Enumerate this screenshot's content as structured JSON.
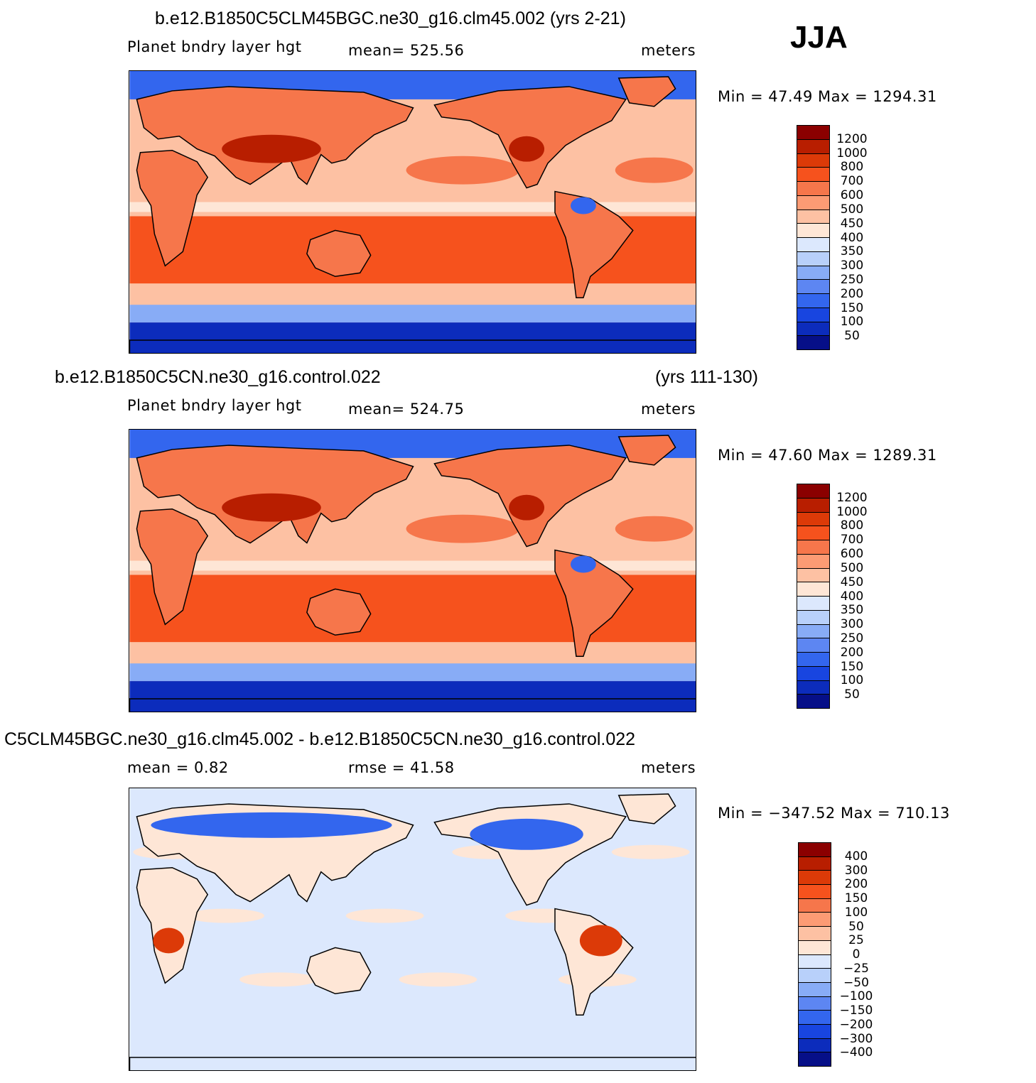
{
  "season": "JJA",
  "panels": [
    {
      "title": "b.e12.B1850C5CLM45BGC.ne30_g16.clm45.002 (yrs 2-21)",
      "title_right": "",
      "left_label": "Planet bndry layer hgt",
      "center_label": "mean= 525.56",
      "units": "meters",
      "minmax": "Min =   47.49 Max = 1294.31",
      "colorbar": {
        "levels": [
          "1200",
          "1000",
          "800",
          "700",
          "600",
          "500",
          "450",
          "400",
          "350",
          "300",
          "250",
          "200",
          "150",
          "100",
          "50"
        ],
        "colors": [
          "#8b0000",
          "#b81e00",
          "#dc3a08",
          "#f6521d",
          "#f6764b",
          "#fc9b74",
          "#fdc1a3",
          "#fee6d6",
          "#dce8fd",
          "#b8d0fa",
          "#88acf6",
          "#5d86f2",
          "#3366ee",
          "#1845e0",
          "#0c2cbc",
          "#060f88"
        ]
      },
      "map_kind": "abs"
    },
    {
      "title": "b.e12.B1850C5CN.ne30_g16.control.022",
      "title_right": "(yrs 111-130)",
      "left_label": "Planet bndry layer hgt",
      "center_label": "mean= 524.75",
      "units": "meters",
      "minmax": "Min =   47.60 Max = 1289.31",
      "colorbar": {
        "levels": [
          "1200",
          "1000",
          "800",
          "700",
          "600",
          "500",
          "450",
          "400",
          "350",
          "300",
          "250",
          "200",
          "150",
          "100",
          "50"
        ],
        "colors": [
          "#8b0000",
          "#b81e00",
          "#dc3a08",
          "#f6521d",
          "#f6764b",
          "#fc9b74",
          "#fdc1a3",
          "#fee6d6",
          "#dce8fd",
          "#b8d0fa",
          "#88acf6",
          "#5d86f2",
          "#3366ee",
          "#1845e0",
          "#0c2cbc",
          "#060f88"
        ]
      },
      "map_kind": "abs"
    },
    {
      "title": "C5CLM45BGC.ne30_g16.clm45.002 - b.e12.B1850C5CN.ne30_g16.control.022",
      "title_right": "",
      "left_label": "mean =    0.82",
      "center_label": "rmse =   41.58",
      "units": "meters",
      "minmax": "Min = −347.52 Max = 710.13",
      "colorbar": {
        "levels": [
          "400",
          "300",
          "200",
          "150",
          "100",
          "50",
          "25",
          "0",
          "−25",
          "−50",
          "−100",
          "−150",
          "−200",
          "−300",
          "−400"
        ],
        "colors": [
          "#8b0000",
          "#b81e00",
          "#dc3a08",
          "#f6521d",
          "#f6764b",
          "#fc9b74",
          "#fdc1a3",
          "#fee6d6",
          "#dce8fd",
          "#b8d0fa",
          "#88acf6",
          "#5d86f2",
          "#3366ee",
          "#1845e0",
          "#0c2cbc",
          "#060f88"
        ]
      },
      "map_kind": "diff"
    }
  ]
}
